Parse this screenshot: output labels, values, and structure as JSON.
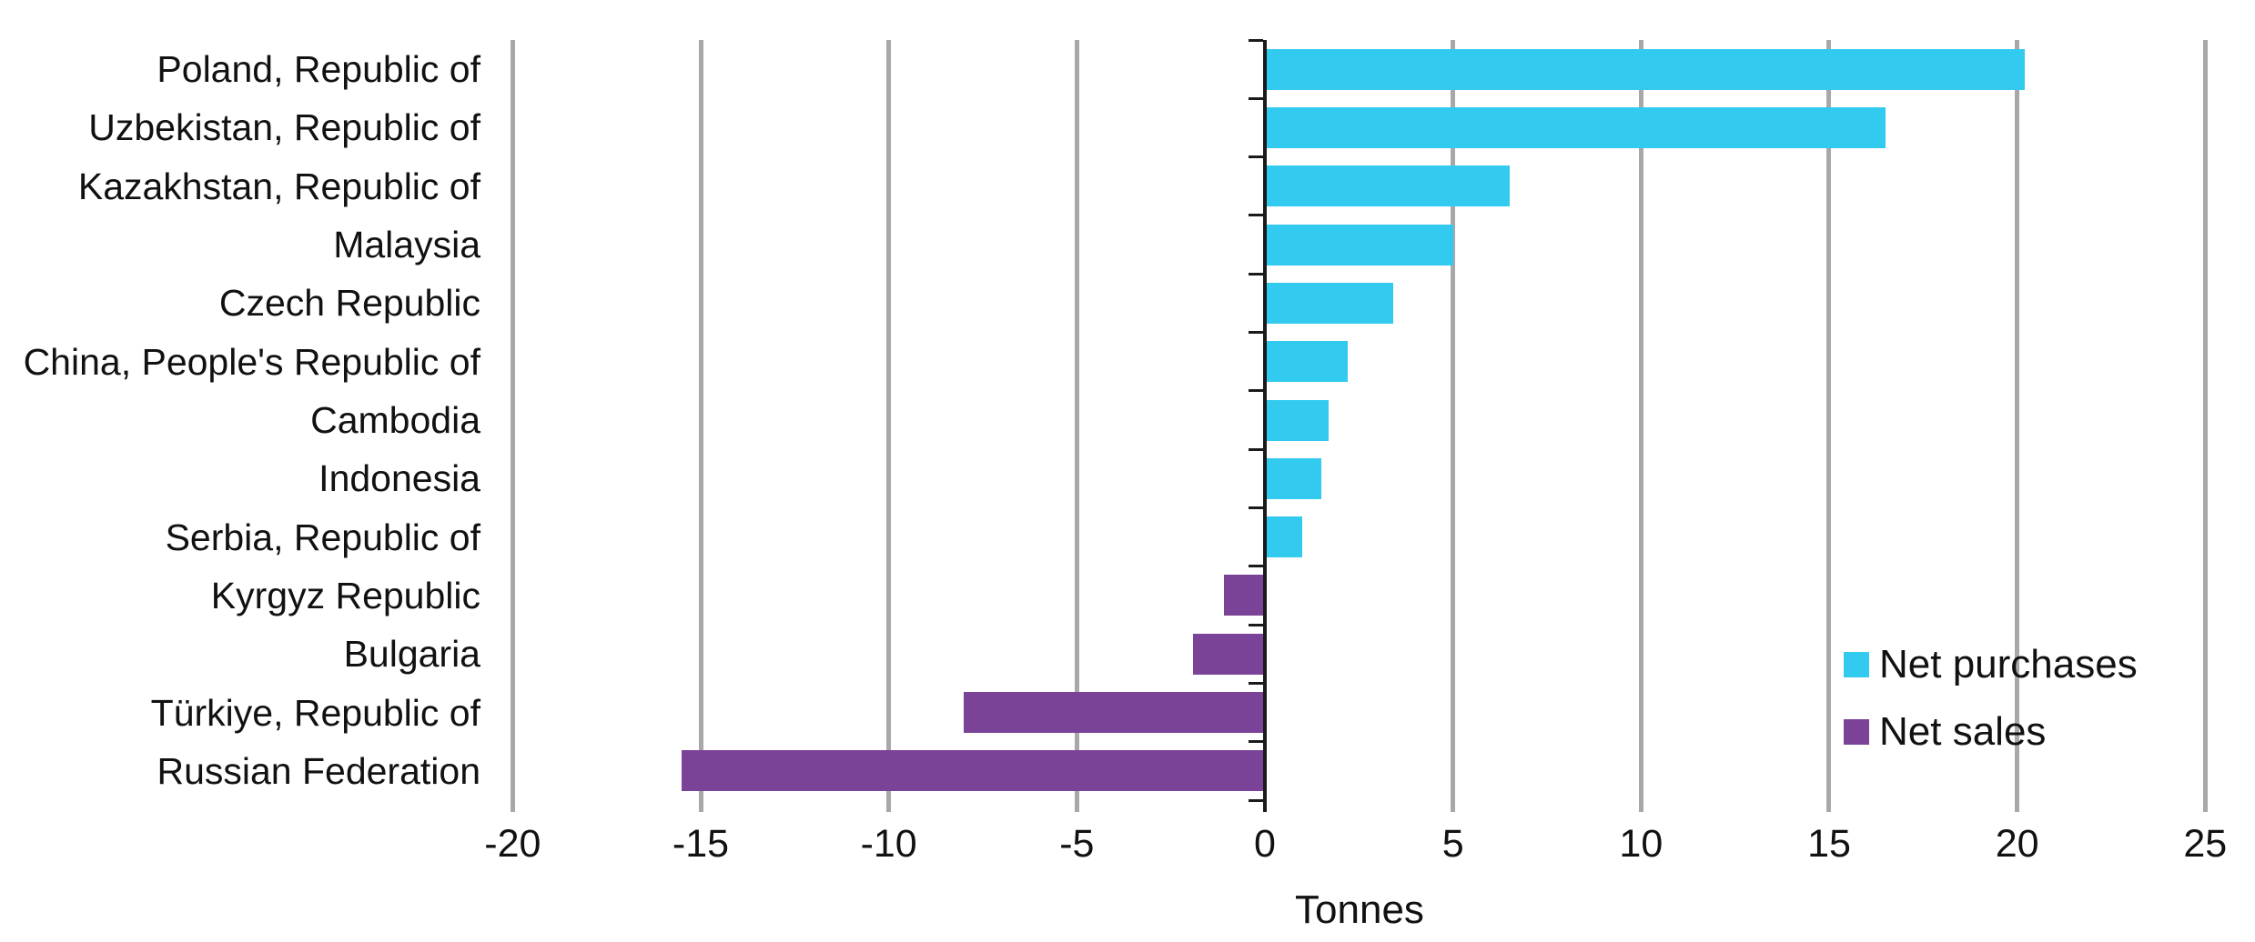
{
  "chart_data": {
    "type": "bar",
    "orientation": "horizontal",
    "title": "",
    "xlabel": "Tonnes",
    "ylabel": "",
    "xlim": [
      -20,
      25
    ],
    "x_ticks": [
      -20,
      -15,
      -10,
      -5,
      0,
      5,
      10,
      15,
      20,
      25
    ],
    "grid": true,
    "categories": [
      "Poland, Republic of",
      "Uzbekistan, Republic of",
      "Kazakhstan, Republic of",
      "Malaysia",
      "Czech Republic",
      "China, People's Republic of",
      "Cambodia",
      "Indonesia",
      "Serbia, Republic of",
      "Kyrgyz Republic",
      "Bulgaria",
      "Türkiye, Republic of",
      "Russian Federation"
    ],
    "values": [
      20.2,
      16.5,
      6.5,
      5.0,
      3.4,
      2.2,
      1.7,
      1.5,
      1.0,
      -1.1,
      -1.9,
      -8.0,
      -15.5
    ],
    "legend": [
      {
        "label": "Net purchases",
        "color": "#33CAF0"
      },
      {
        "label": "Net sales",
        "color": "#7A4397"
      }
    ],
    "legend_position": "inside-right",
    "colors": {
      "positive": "#33CAF0",
      "negative": "#7A4397",
      "gridline": "#A8A8A8",
      "axis": "#1A1A1A",
      "text": "#111111"
    }
  }
}
